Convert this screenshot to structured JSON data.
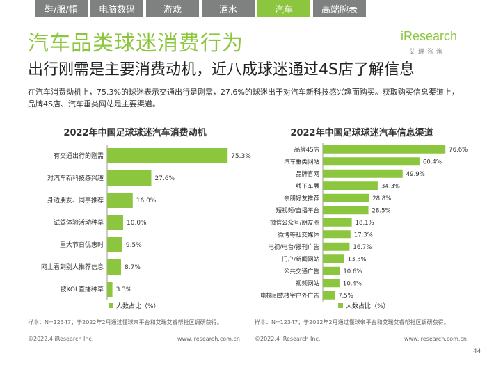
{
  "nav": {
    "tabs": [
      {
        "label": "鞋/服/帽",
        "active": false
      },
      {
        "label": "电脑数码",
        "active": false
      },
      {
        "label": "游戏",
        "active": false
      },
      {
        "label": "酒水",
        "active": false
      },
      {
        "label": "汽车",
        "active": true
      },
      {
        "label": "高端腕表",
        "active": false
      }
    ]
  },
  "header": {
    "title": "汽车品类球迷消费行为",
    "subtitle": "出行刚需是主要消费动机，近八成球迷通过4S店了解信息",
    "logo_word": "iResearch",
    "logo_sub": "艾瑞咨询"
  },
  "description": "在汽车消费动机上，75.3%的球迷表示交通出行是刚需，27.6%的球迷出于对汽车新科技感兴趣而购买。获取购买信息渠道上，品牌4S店、汽车垂类网站是主要渠道。",
  "colors": {
    "accent": "#8cc63e",
    "tab_inactive": "#7f8080"
  },
  "chart_data": [
    {
      "type": "bar",
      "orientation": "horizontal",
      "title": "2022年中国足球球迷汽车消费动机",
      "categories": [
        "有交通出行的刚需",
        "对汽车新科技感兴趣",
        "身边朋友、同事推荐",
        "试驾体验活动种草",
        "重大节日优惠时",
        "网上看到别人推荐信息",
        "被KOL直播种草"
      ],
      "values": [
        75.3,
        27.6,
        16.0,
        10.0,
        9.5,
        8.7,
        3.3
      ],
      "value_labels": [
        "75.3%",
        "27.6%",
        "16.0%",
        "10.0%",
        "9.5%",
        "8.7%",
        "3.3%"
      ],
      "legend": "人数占比（%）",
      "legend_position": "bottom-left",
      "xlim": [
        0,
        100
      ],
      "grid": false
    },
    {
      "type": "bar",
      "orientation": "horizontal",
      "title": "2022年中国足球球迷汽车信息渠道",
      "categories": [
        "品牌4S店",
        "汽车垂类网站",
        "品牌官网",
        "线下车展",
        "亲朋好友推荐",
        "短视频/直播平台",
        "微信公众号/朋友圈",
        "微博等社交媒体",
        "电视/电台/报刊广告",
        "门户/新闻网站",
        "公共交通广告",
        "视频网站",
        "电梯间或楼宇户外广告"
      ],
      "values": [
        76.6,
        60.4,
        49.9,
        34.3,
        28.8,
        28.5,
        18.1,
        17.3,
        16.7,
        13.3,
        10.6,
        10.4,
        7.5
      ],
      "value_labels": [
        "76.6%",
        "60.4%",
        "49.9%",
        "34.3%",
        "28.8%",
        "28.5%",
        "18.1%",
        "17.3%",
        "16.7%",
        "13.3%",
        "10.6%",
        "10.4%",
        "7.5%"
      ],
      "legend": "人数占比（%）",
      "legend_position": "bottom-left",
      "xlim": [
        0,
        100
      ],
      "grid": false
    }
  ],
  "footer": {
    "source": "样本：N=12347；于2022年2月通过懂球帝平台和艾瑞艾睿帮社区调研获得。",
    "copyright": "©2022.4 iResearch Inc.",
    "website": "www.iresearch.com.cn",
    "page": "44"
  }
}
